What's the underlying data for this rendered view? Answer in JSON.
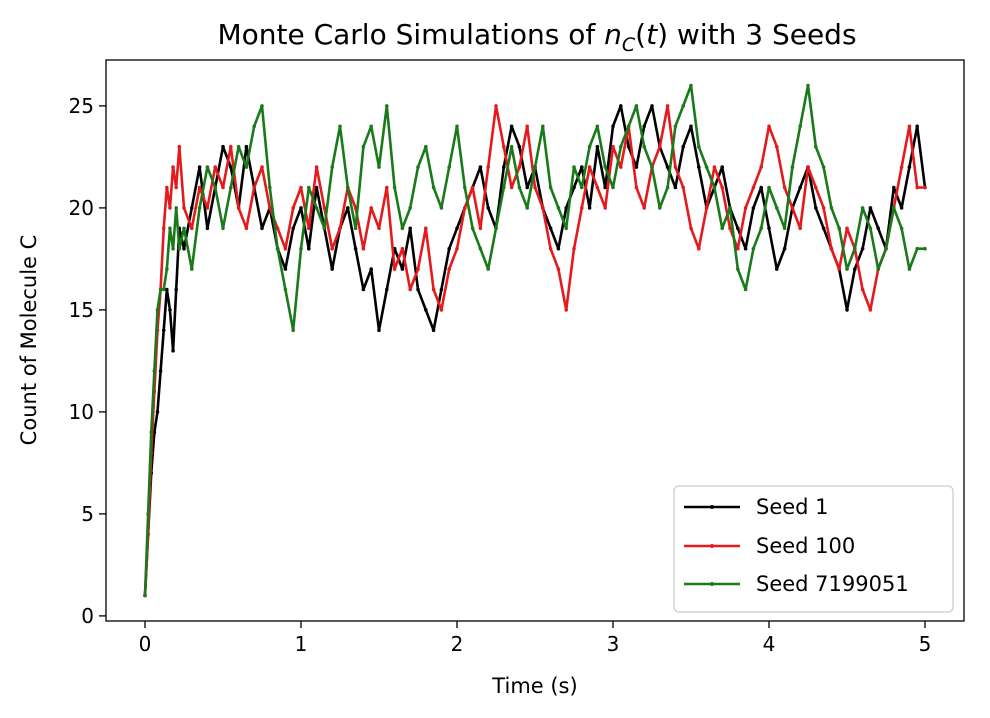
{
  "chart_data": {
    "type": "line",
    "title": {
      "prefix": "Monte Carlo Simulations of ",
      "math_var": "n",
      "math_sub": "C",
      "math_open": "(",
      "math_arg": "t",
      "math_close": ")",
      "suffix": " with 3 Seeds"
    },
    "xlabel": "Time (s)",
    "ylabel": "Count of Molecule C",
    "xlim": [
      -0.25,
      5.25
    ],
    "ylim": [
      -0.25,
      27.25
    ],
    "xticks": [
      0,
      1,
      2,
      3,
      4,
      5
    ],
    "xtick_labels": [
      "0",
      "1",
      "2",
      "3",
      "4",
      "5"
    ],
    "yticks": [
      0,
      5,
      10,
      15,
      20,
      25
    ],
    "ytick_labels": [
      "0",
      "5",
      "10",
      "15",
      "20",
      "25"
    ],
    "grid": false,
    "legend_position": "lower-right",
    "series": [
      {
        "name": "Seed 1",
        "color": "#000000",
        "x": [
          0,
          0.02,
          0.04,
          0.06,
          0.08,
          0.1,
          0.12,
          0.14,
          0.16,
          0.18,
          0.2,
          0.22,
          0.25,
          0.3,
          0.35,
          0.4,
          0.45,
          0.5,
          0.55,
          0.6,
          0.65,
          0.7,
          0.75,
          0.8,
          0.85,
          0.9,
          0.95,
          1.0,
          1.05,
          1.1,
          1.15,
          1.2,
          1.25,
          1.3,
          1.35,
          1.4,
          1.45,
          1.5,
          1.55,
          1.6,
          1.65,
          1.7,
          1.75,
          1.8,
          1.85,
          1.9,
          1.95,
          2.0,
          2.05,
          2.1,
          2.15,
          2.2,
          2.25,
          2.3,
          2.35,
          2.4,
          2.45,
          2.5,
          2.55,
          2.6,
          2.65,
          2.7,
          2.75,
          2.8,
          2.85,
          2.9,
          2.95,
          3.0,
          3.05,
          3.1,
          3.15,
          3.2,
          3.25,
          3.3,
          3.35,
          3.4,
          3.45,
          3.5,
          3.55,
          3.6,
          3.65,
          3.7,
          3.75,
          3.8,
          3.85,
          3.9,
          3.95,
          4.0,
          4.05,
          4.1,
          4.15,
          4.2,
          4.25,
          4.3,
          4.35,
          4.4,
          4.45,
          4.5,
          4.55,
          4.6,
          4.65,
          4.7,
          4.75,
          4.8,
          4.85,
          4.9,
          4.95,
          5.0
        ],
        "values": [
          1,
          4,
          7,
          9,
          10,
          12,
          14,
          16,
          15,
          13,
          16,
          19,
          18,
          20,
          22,
          19,
          21,
          23,
          22,
          20,
          23,
          21,
          19,
          20,
          18,
          17,
          19,
          20,
          18,
          21,
          19,
          17,
          19,
          20,
          18,
          16,
          17,
          14,
          16,
          18,
          17,
          19,
          16,
          15,
          14,
          16,
          18,
          19,
          20,
          21,
          22,
          20,
          19,
          22,
          24,
          23,
          21,
          22,
          20,
          19,
          18,
          20,
          21,
          22,
          20,
          23,
          21,
          24,
          25,
          23,
          22,
          24,
          25,
          23,
          22,
          21,
          23,
          24,
          22,
          20,
          21,
          22,
          20,
          19,
          18,
          20,
          21,
          19,
          17,
          18,
          20,
          21,
          22,
          20,
          19,
          18,
          17,
          15,
          17,
          18,
          20,
          19,
          18,
          21,
          20,
          22,
          24,
          21
        ]
      },
      {
        "name": "Seed 100",
        "color": "#e41a1c",
        "x": [
          0,
          0.02,
          0.04,
          0.06,
          0.08,
          0.1,
          0.12,
          0.14,
          0.16,
          0.18,
          0.2,
          0.22,
          0.25,
          0.3,
          0.35,
          0.4,
          0.45,
          0.5,
          0.55,
          0.6,
          0.65,
          0.7,
          0.75,
          0.8,
          0.85,
          0.9,
          0.95,
          1.0,
          1.05,
          1.1,
          1.15,
          1.2,
          1.25,
          1.3,
          1.35,
          1.4,
          1.45,
          1.5,
          1.55,
          1.6,
          1.65,
          1.7,
          1.75,
          1.8,
          1.85,
          1.9,
          1.95,
          2.0,
          2.05,
          2.1,
          2.15,
          2.2,
          2.25,
          2.3,
          2.35,
          2.4,
          2.45,
          2.5,
          2.55,
          2.6,
          2.65,
          2.7,
          2.75,
          2.8,
          2.85,
          2.9,
          2.95,
          3.0,
          3.05,
          3.1,
          3.15,
          3.2,
          3.25,
          3.3,
          3.35,
          3.4,
          3.45,
          3.5,
          3.55,
          3.6,
          3.65,
          3.7,
          3.75,
          3.8,
          3.85,
          3.9,
          3.95,
          4.0,
          4.05,
          4.1,
          4.15,
          4.2,
          4.25,
          4.3,
          4.35,
          4.4,
          4.45,
          4.5,
          4.55,
          4.6,
          4.65,
          4.7,
          4.75,
          4.8,
          4.85,
          4.9,
          4.95,
          5.0
        ],
        "values": [
          1,
          4,
          8,
          11,
          14,
          16,
          19,
          21,
          20,
          22,
          21,
          23,
          20,
          19,
          21,
          20,
          22,
          21,
          23,
          20,
          19,
          21,
          22,
          20,
          19,
          18,
          20,
          21,
          19,
          22,
          20,
          18,
          19,
          21,
          20,
          18,
          20,
          19,
          21,
          17,
          18,
          16,
          17,
          19,
          16,
          15,
          17,
          18,
          20,
          21,
          19,
          22,
          25,
          23,
          21,
          22,
          24,
          21,
          20,
          18,
          17,
          15,
          18,
          20,
          22,
          21,
          20,
          23,
          22,
          24,
          21,
          20,
          22,
          23,
          25,
          22,
          21,
          19,
          18,
          20,
          22,
          21,
          19,
          18,
          20,
          21,
          22,
          24,
          23,
          21,
          20,
          19,
          22,
          21,
          20,
          18,
          17,
          19,
          18,
          16,
          15,
          17,
          18,
          20,
          22,
          24,
          21,
          21
        ]
      },
      {
        "name": "Seed 7199051",
        "color": "#1a7a1a",
        "x": [
          0,
          0.02,
          0.04,
          0.06,
          0.08,
          0.1,
          0.12,
          0.14,
          0.16,
          0.18,
          0.2,
          0.22,
          0.25,
          0.3,
          0.35,
          0.4,
          0.45,
          0.5,
          0.55,
          0.6,
          0.65,
          0.7,
          0.75,
          0.8,
          0.85,
          0.9,
          0.95,
          1.0,
          1.05,
          1.1,
          1.15,
          1.2,
          1.25,
          1.3,
          1.35,
          1.4,
          1.45,
          1.5,
          1.55,
          1.6,
          1.65,
          1.7,
          1.75,
          1.8,
          1.85,
          1.9,
          1.95,
          2.0,
          2.05,
          2.1,
          2.15,
          2.2,
          2.25,
          2.3,
          2.35,
          2.4,
          2.45,
          2.5,
          2.55,
          2.6,
          2.65,
          2.7,
          2.75,
          2.8,
          2.85,
          2.9,
          2.95,
          3.0,
          3.05,
          3.1,
          3.15,
          3.2,
          3.25,
          3.3,
          3.35,
          3.4,
          3.45,
          3.5,
          3.55,
          3.6,
          3.65,
          3.7,
          3.75,
          3.8,
          3.85,
          3.9,
          3.95,
          4.0,
          4.05,
          4.1,
          4.15,
          4.2,
          4.25,
          4.3,
          4.35,
          4.4,
          4.45,
          4.5,
          4.55,
          4.6,
          4.65,
          4.7,
          4.75,
          4.8,
          4.85,
          4.9,
          4.95,
          5.0
        ],
        "values": [
          1,
          5,
          9,
          12,
          15,
          16,
          16,
          17,
          19,
          18,
          20,
          18,
          19,
          17,
          20,
          22,
          21,
          19,
          21,
          23,
          22,
          24,
          25,
          21,
          18,
          16,
          14,
          18,
          21,
          20,
          19,
          22,
          24,
          21,
          19,
          23,
          24,
          22,
          25,
          21,
          19,
          20,
          22,
          23,
          21,
          20,
          22,
          24,
          21,
          19,
          18,
          17,
          19,
          21,
          23,
          21,
          20,
          22,
          24,
          21,
          20,
          19,
          22,
          21,
          23,
          24,
          22,
          21,
          23,
          24,
          25,
          23,
          22,
          20,
          21,
          24,
          25,
          26,
          23,
          22,
          21,
          19,
          20,
          17,
          16,
          18,
          19,
          21,
          20,
          19,
          22,
          24,
          26,
          23,
          22,
          20,
          19,
          17,
          18,
          20,
          19,
          17,
          18,
          20,
          19,
          17,
          18,
          18
        ]
      }
    ]
  }
}
